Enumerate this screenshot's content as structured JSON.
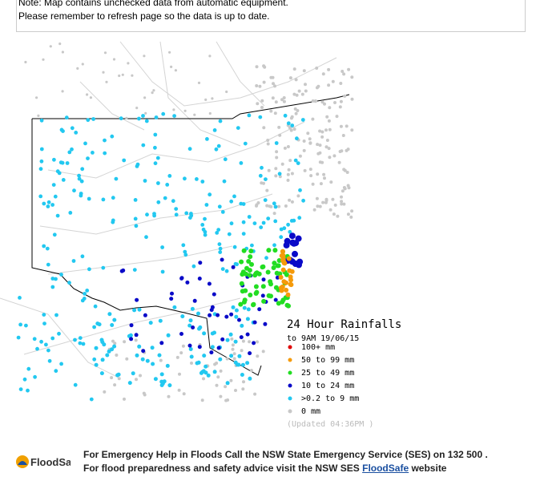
{
  "notice": {
    "lines": [
      "Note: Map contains unchecked data from automatic equipment.",
      "Please remember to refresh page so the data is up to date."
    ]
  },
  "legend": {
    "title": "24 Hour Rainfalls",
    "subtitle": "to 9AM 19/06/15",
    "items": [
      {
        "label": "100+ mm",
        "color": "#e00000"
      },
      {
        "label": "50  to 99 mm",
        "color": "#f59a0a"
      },
      {
        "label": "25  to 49 mm",
        "color": "#22dd22"
      },
      {
        "label": "10  to 24 mm",
        "color": "#0a0ac8"
      },
      {
        "label": ">0.2 to 9 mm",
        "color": "#22c8f0"
      },
      {
        "label": "0 mm",
        "color": "#c8c8c8"
      }
    ],
    "updated": "(Updated 04:36PM  )"
  },
  "footer": {
    "logo": "FloodSafe",
    "line1": "For Emergency Help in Floods Call the NSW State Emergency Service (SES) on 132 500 .",
    "line2_prefix": "For flood preparedness and safety advice visit the NSW SES",
    "link": "FloodSafe",
    "line2_suffix": "website"
  }
}
